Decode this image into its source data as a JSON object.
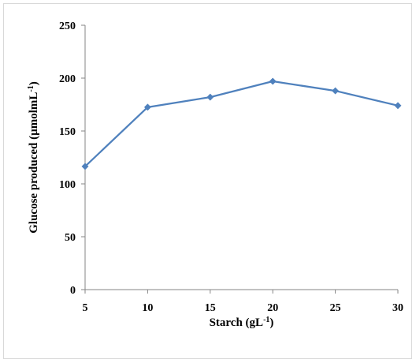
{
  "chart_data": {
    "type": "line",
    "title": "",
    "xlabel": {
      "main": "Starch (gL",
      "sup": "-1",
      "close": ")"
    },
    "ylabel": {
      "main": "Glucose produced (µmolmL",
      "sup": "-1",
      "close": ")"
    },
    "x": [
      5,
      10,
      15,
      20,
      25,
      30
    ],
    "x_ticks": [
      5,
      10,
      15,
      20,
      25,
      30
    ],
    "y_ticks": [
      0,
      50,
      100,
      150,
      200,
      250
    ],
    "ylim": [
      0,
      250
    ],
    "series": [
      {
        "values": [
          116.5,
          172.5,
          182,
          197,
          188,
          174
        ],
        "color": "#4F81BD",
        "marker": "diamond"
      }
    ],
    "grid": false,
    "legend": "none"
  }
}
